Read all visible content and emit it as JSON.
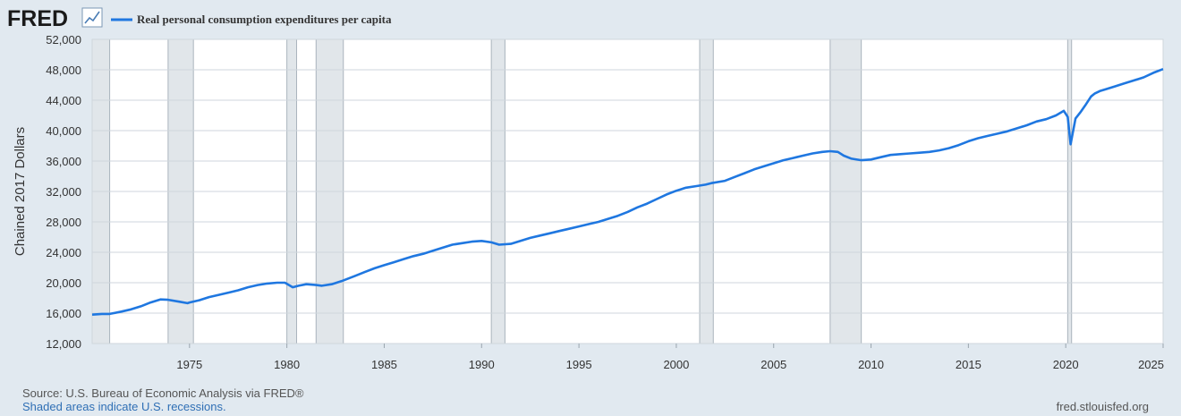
{
  "header": {
    "logo_text": "FRED",
    "logo_icon": "line-chart-icon"
  },
  "footer": {
    "source": "Source: U.S. Bureau of Economic Analysis via FRED®",
    "recession_note": "Shaded areas indicate U.S. recessions.",
    "site": "fred.stlouisfed.org"
  },
  "chart_data": {
    "type": "line",
    "ylabel": "Chained 2017 Dollars",
    "xlabel": "",
    "ylim": [
      12000,
      52000
    ],
    "xlim": [
      1970.0,
      2025.0
    ],
    "y_ticks": [
      12000,
      16000,
      20000,
      24000,
      28000,
      32000,
      36000,
      40000,
      44000,
      48000,
      52000
    ],
    "y_tick_labels": [
      "12,000",
      "16,000",
      "20,000",
      "24,000",
      "28,000",
      "32,000",
      "36,000",
      "40,000",
      "44,000",
      "48,000",
      "52,000"
    ],
    "x_ticks": [
      1975,
      1980,
      1985,
      1990,
      1995,
      2000,
      2005,
      2010,
      2015,
      2020,
      2025
    ],
    "x_tick_labels": [
      "1975",
      "1980",
      "1985",
      "1990",
      "1995",
      "2000",
      "2005",
      "2010",
      "2015",
      "2020",
      "2025"
    ],
    "grid": true,
    "legend_position": "top-left",
    "series": [
      {
        "name": "Real personal consumption expenditures per capita",
        "color": "#1f77e0",
        "x": [
          1970.0,
          1970.5,
          1970.9,
          1971.5,
          1972.0,
          1972.5,
          1973.0,
          1973.5,
          1973.9,
          1974.5,
          1974.9,
          1975.0,
          1975.5,
          1976.0,
          1976.5,
          1977.0,
          1977.5,
          1978.0,
          1978.5,
          1979.0,
          1979.5,
          1979.9,
          1980.3,
          1980.6,
          1981.0,
          1981.5,
          1981.8,
          1982.3,
          1982.8,
          1983.5,
          1984.0,
          1984.5,
          1985.0,
          1985.5,
          1986.0,
          1986.5,
          1987.0,
          1987.5,
          1988.0,
          1988.5,
          1989.0,
          1989.5,
          1990.0,
          1990.5,
          1990.9,
          1991.5,
          1992.0,
          1992.5,
          1993.0,
          1993.5,
          1994.0,
          1994.5,
          1995.0,
          1995.5,
          1996.0,
          1996.5,
          1997.0,
          1997.5,
          1998.0,
          1998.5,
          1999.0,
          1999.5,
          2000.0,
          2000.5,
          2001.0,
          2001.5,
          2001.8,
          2002.5,
          2003.0,
          2003.5,
          2004.0,
          2004.5,
          2005.0,
          2005.5,
          2006.0,
          2006.5,
          2007.0,
          2007.5,
          2007.9,
          2008.3,
          2008.6,
          2009.0,
          2009.5,
          2010.0,
          2010.5,
          2011.0,
          2011.5,
          2012.0,
          2012.5,
          2013.0,
          2013.5,
          2014.0,
          2014.5,
          2015.0,
          2015.5,
          2016.0,
          2016.5,
          2017.0,
          2017.5,
          2018.0,
          2018.5,
          2019.0,
          2019.5,
          2019.9,
          2020.1,
          2020.25,
          2020.5,
          2020.75,
          2021.0,
          2021.3,
          2021.5,
          2021.75,
          2022.0,
          2022.5,
          2023.0,
          2023.5,
          2024.0,
          2024.5,
          2025.0
        ],
        "values": [
          15800,
          15900,
          15900,
          16200,
          16500,
          16900,
          17400,
          17800,
          17750,
          17500,
          17300,
          17400,
          17700,
          18100,
          18400,
          18700,
          19000,
          19400,
          19700,
          19900,
          20000,
          20000,
          19400,
          19600,
          19800,
          19700,
          19600,
          19800,
          20200,
          20900,
          21400,
          21900,
          22300,
          22700,
          23100,
          23500,
          23800,
          24200,
          24600,
          25000,
          25200,
          25400,
          25500,
          25300,
          25000,
          25100,
          25500,
          25900,
          26200,
          26500,
          26800,
          27100,
          27400,
          27700,
          28000,
          28400,
          28800,
          29300,
          29900,
          30400,
          31000,
          31600,
          32100,
          32500,
          32700,
          32900,
          33100,
          33400,
          33900,
          34400,
          34900,
          35300,
          35700,
          36100,
          36400,
          36700,
          37000,
          37200,
          37300,
          37200,
          36700,
          36300,
          36100,
          36200,
          36500,
          36800,
          36900,
          37000,
          37100,
          37200,
          37400,
          37700,
          38100,
          38600,
          39000,
          39300,
          39600,
          39900,
          40300,
          40700,
          41200,
          41500,
          42000,
          42600,
          41800,
          38200,
          41600,
          42400,
          43300,
          44500,
          44900,
          45200,
          45400,
          45800,
          46200,
          46600,
          47000,
          47600,
          48100
        ]
      }
    ],
    "recessions": [
      [
        1969.9,
        1970.9
      ],
      [
        1973.9,
        1975.2
      ],
      [
        1980.0,
        1980.5
      ],
      [
        1981.5,
        1982.9
      ],
      [
        1990.5,
        1991.2
      ],
      [
        2001.2,
        2001.9
      ],
      [
        2007.9,
        2009.5
      ],
      [
        2020.1,
        2020.3
      ]
    ]
  }
}
